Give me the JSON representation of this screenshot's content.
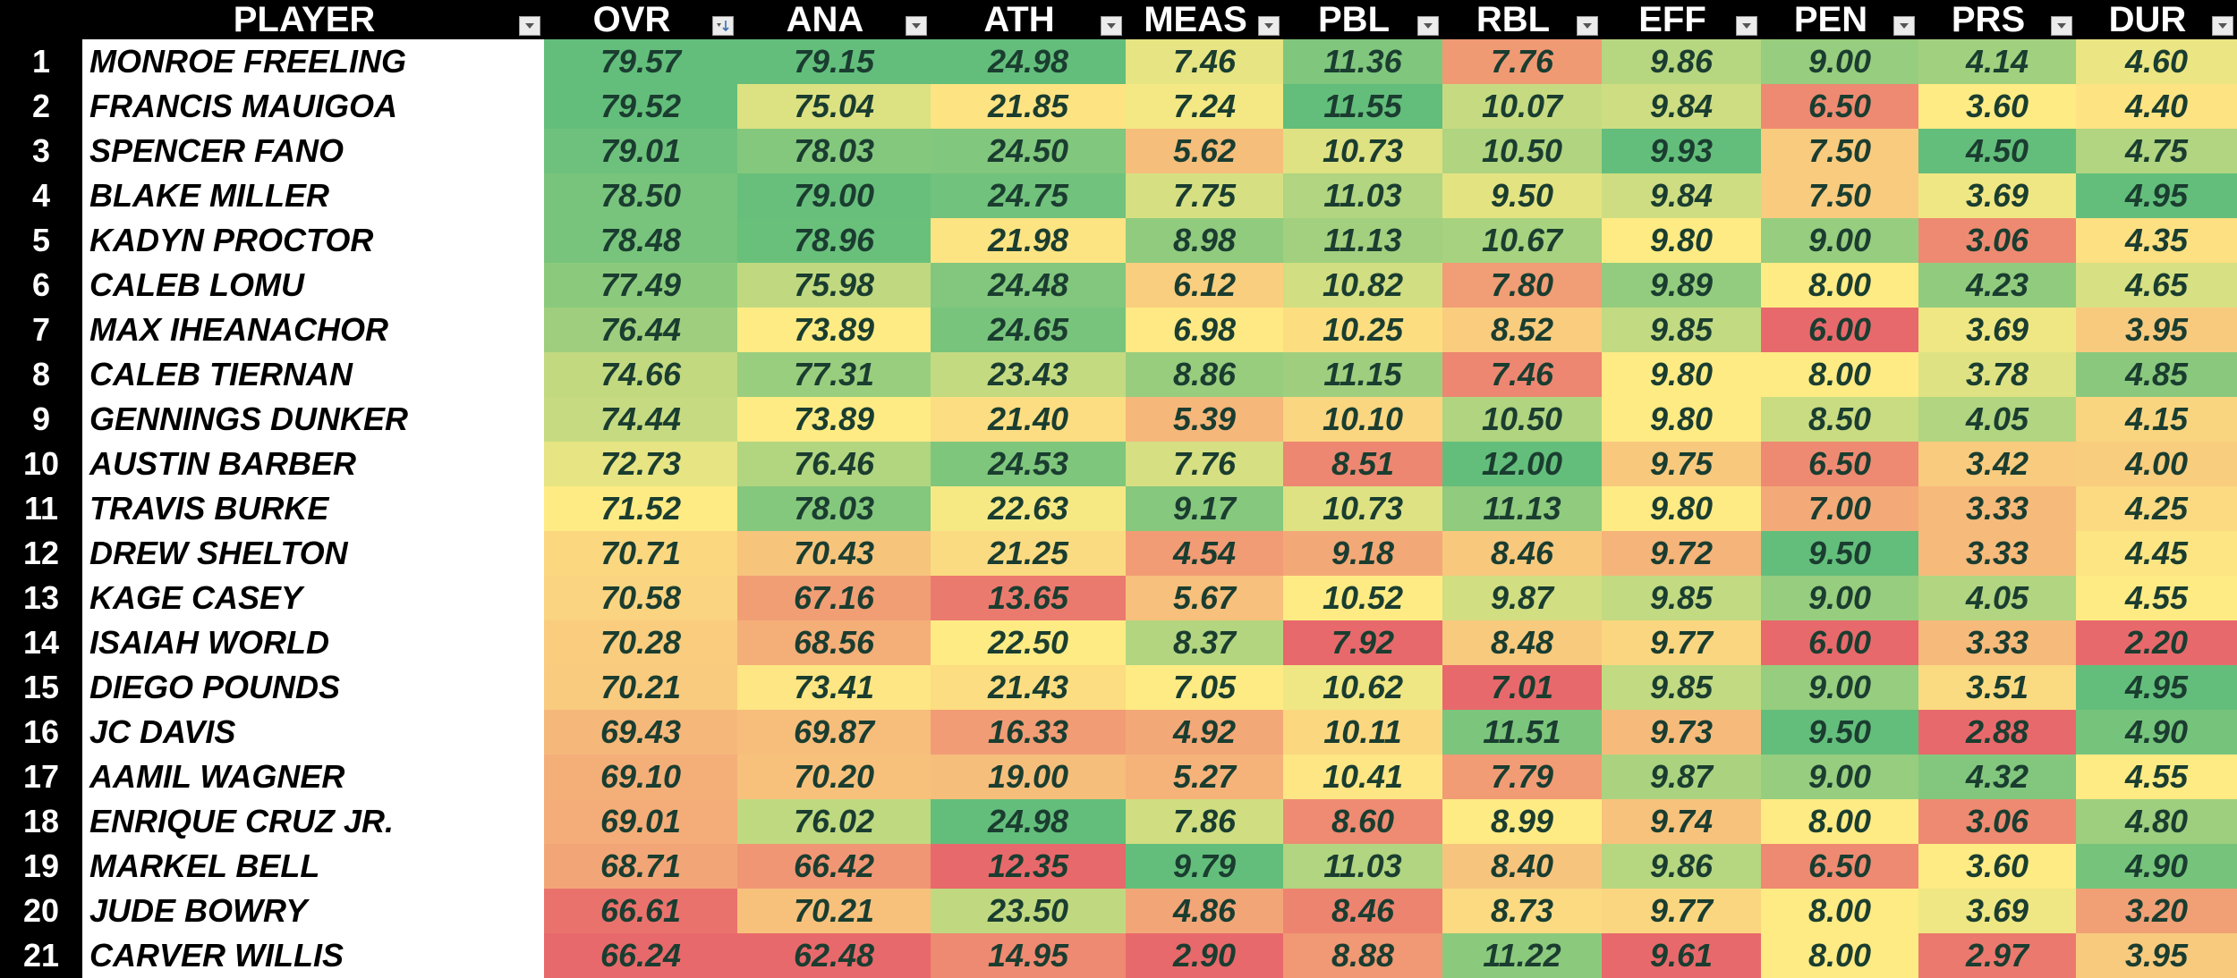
{
  "headers": {
    "player": "PLAYER",
    "stats": [
      "OVR",
      "ANA",
      "ATH",
      "MEAS",
      "PBL",
      "RBL",
      "EFF",
      "PEN",
      "PRS",
      "DUR"
    ],
    "sorted_column": "OVR",
    "sort_direction": "descending"
  },
  "icons": {
    "filter": "dropdown-arrow-icon",
    "sort_filter": "sort-descending-filter-icon"
  },
  "scale_colors": {
    "low": "#e8696b",
    "mid": "#feeb84",
    "high": "#63be7b"
  },
  "rows": [
    {
      "rank": "1",
      "name": "MONROE FREELING",
      "values": [
        "79.57",
        "79.15",
        "24.98",
        "7.46",
        "11.36",
        "7.76",
        "9.86",
        "9.00",
        "4.14",
        "4.60"
      ]
    },
    {
      "rank": "2",
      "name": "FRANCIS MAUIGOA",
      "values": [
        "79.52",
        "75.04",
        "21.85",
        "7.24",
        "11.55",
        "10.07",
        "9.84",
        "6.50",
        "3.60",
        "4.40"
      ]
    },
    {
      "rank": "3",
      "name": "SPENCER FANO",
      "values": [
        "79.01",
        "78.03",
        "24.50",
        "5.62",
        "10.73",
        "10.50",
        "9.93",
        "7.50",
        "4.50",
        "4.75"
      ]
    },
    {
      "rank": "4",
      "name": "BLAKE MILLER",
      "values": [
        "78.50",
        "79.00",
        "24.75",
        "7.75",
        "11.03",
        "9.50",
        "9.84",
        "7.50",
        "3.69",
        "4.95"
      ]
    },
    {
      "rank": "5",
      "name": "KADYN PROCTOR",
      "values": [
        "78.48",
        "78.96",
        "21.98",
        "8.98",
        "11.13",
        "10.67",
        "9.80",
        "9.00",
        "3.06",
        "4.35"
      ]
    },
    {
      "rank": "6",
      "name": "CALEB LOMU",
      "values": [
        "77.49",
        "75.98",
        "24.48",
        "6.12",
        "10.82",
        "7.80",
        "9.89",
        "8.00",
        "4.23",
        "4.65"
      ]
    },
    {
      "rank": "7",
      "name": "MAX IHEANACHOR",
      "values": [
        "76.44",
        "73.89",
        "24.65",
        "6.98",
        "10.25",
        "8.52",
        "9.85",
        "6.00",
        "3.69",
        "3.95"
      ]
    },
    {
      "rank": "8",
      "name": "CALEB TIERNAN",
      "values": [
        "74.66",
        "77.31",
        "23.43",
        "8.86",
        "11.15",
        "7.46",
        "9.80",
        "8.00",
        "3.78",
        "4.85"
      ]
    },
    {
      "rank": "9",
      "name": "GENNINGS DUNKER",
      "values": [
        "74.44",
        "73.89",
        "21.40",
        "5.39",
        "10.10",
        "10.50",
        "9.80",
        "8.50",
        "4.05",
        "4.15"
      ]
    },
    {
      "rank": "10",
      "name": "AUSTIN BARBER",
      "values": [
        "72.73",
        "76.46",
        "24.53",
        "7.76",
        "8.51",
        "12.00",
        "9.75",
        "6.50",
        "3.42",
        "4.00"
      ]
    },
    {
      "rank": "11",
      "name": "TRAVIS BURKE",
      "values": [
        "71.52",
        "78.03",
        "22.63",
        "9.17",
        "10.73",
        "11.13",
        "9.80",
        "7.00",
        "3.33",
        "4.25"
      ]
    },
    {
      "rank": "12",
      "name": "DREW SHELTON",
      "values": [
        "70.71",
        "70.43",
        "21.25",
        "4.54",
        "9.18",
        "8.46",
        "9.72",
        "9.50",
        "3.33",
        "4.45"
      ]
    },
    {
      "rank": "13",
      "name": "KAGE CASEY",
      "values": [
        "70.58",
        "67.16",
        "13.65",
        "5.67",
        "10.52",
        "9.87",
        "9.85",
        "9.00",
        "4.05",
        "4.55"
      ]
    },
    {
      "rank": "14",
      "name": "ISAIAH WORLD",
      "values": [
        "70.28",
        "68.56",
        "22.50",
        "8.37",
        "7.92",
        "8.48",
        "9.77",
        "6.00",
        "3.33",
        "2.20"
      ]
    },
    {
      "rank": "15",
      "name": "DIEGO POUNDS",
      "values": [
        "70.21",
        "73.41",
        "21.43",
        "7.05",
        "10.62",
        "7.01",
        "9.85",
        "9.00",
        "3.51",
        "4.95"
      ]
    },
    {
      "rank": "16",
      "name": "JC DAVIS",
      "values": [
        "69.43",
        "69.87",
        "16.33",
        "4.92",
        "10.11",
        "11.51",
        "9.73",
        "9.50",
        "2.88",
        "4.90"
      ]
    },
    {
      "rank": "17",
      "name": "AAMIL WAGNER",
      "values": [
        "69.10",
        "70.20",
        "19.00",
        "5.27",
        "10.41",
        "7.79",
        "9.87",
        "9.00",
        "4.32",
        "4.55"
      ]
    },
    {
      "rank": "18",
      "name": "ENRIQUE CRUZ JR.",
      "values": [
        "69.01",
        "76.02",
        "24.98",
        "7.86",
        "8.60",
        "8.99",
        "9.74",
        "8.00",
        "3.06",
        "4.80"
      ]
    },
    {
      "rank": "19",
      "name": "MARKEL BELL",
      "values": [
        "68.71",
        "66.42",
        "12.35",
        "9.79",
        "11.03",
        "8.40",
        "9.86",
        "6.50",
        "3.60",
        "4.90"
      ]
    },
    {
      "rank": "20",
      "name": "JUDE BOWRY",
      "values": [
        "66.61",
        "70.21",
        "23.50",
        "4.86",
        "8.46",
        "8.73",
        "9.77",
        "8.00",
        "3.69",
        "3.20"
      ]
    },
    {
      "rank": "21",
      "name": "CARVER WILLIS",
      "values": [
        "66.24",
        "62.48",
        "14.95",
        "2.90",
        "8.88",
        "11.22",
        "9.61",
        "8.00",
        "2.97",
        "3.95"
      ]
    }
  ]
}
